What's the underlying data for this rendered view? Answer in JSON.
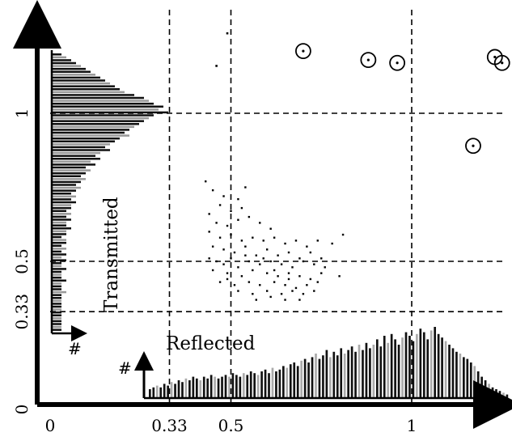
{
  "chart_data": {
    "type": "scatter",
    "xlabel": "Reflected",
    "ylabel": "Transmitted",
    "histogram_count_label": "#",
    "xlim": [
      0,
      1.25
    ],
    "ylim": [
      0,
      1.3
    ],
    "x_ticks": [
      {
        "value": 0,
        "label": "0"
      },
      {
        "value": 0.33,
        "label": "0.33"
      },
      {
        "value": 0.5,
        "label": "0.5"
      },
      {
        "value": 1,
        "label": "1"
      }
    ],
    "y_ticks": [
      {
        "value": 0,
        "label": "0"
      },
      {
        "value": 0.33,
        "label": "0.33"
      },
      {
        "value": 0.5,
        "label": "0.5"
      },
      {
        "value": 1,
        "label": "1"
      }
    ],
    "reference_lines_x": [
      0.33,
      0.5,
      1
    ],
    "reference_lines_y": [
      0.33,
      0.5,
      1
    ],
    "circled_points": [
      {
        "x": 0.7,
        "y": 1.21
      },
      {
        "x": 0.88,
        "y": 1.18
      },
      {
        "x": 0.96,
        "y": 1.17
      },
      {
        "x": 1.17,
        "y": 0.89
      },
      {
        "x": 1.23,
        "y": 1.19
      },
      {
        "x": 1.25,
        "y": 1.17
      }
    ],
    "outlier_points": [
      {
        "x": 0.46,
        "y": 1.16
      },
      {
        "x": 0.49,
        "y": 1.27
      }
    ],
    "cluster": {
      "description_points": [
        [
          0.43,
          0.77
        ],
        [
          0.45,
          0.74
        ],
        [
          0.48,
          0.72
        ],
        [
          0.52,
          0.71
        ],
        [
          0.54,
          0.75
        ],
        [
          0.47,
          0.69
        ],
        [
          0.5,
          0.67
        ],
        [
          0.53,
          0.68
        ],
        [
          0.44,
          0.66
        ],
        [
          0.46,
          0.63
        ],
        [
          0.49,
          0.62
        ],
        [
          0.52,
          0.64
        ],
        [
          0.55,
          0.65
        ],
        [
          0.58,
          0.63
        ],
        [
          0.61,
          0.61
        ],
        [
          0.44,
          0.6
        ],
        [
          0.47,
          0.58
        ],
        [
          0.5,
          0.59
        ],
        [
          0.53,
          0.57
        ],
        [
          0.56,
          0.58
        ],
        [
          0.59,
          0.57
        ],
        [
          0.62,
          0.58
        ],
        [
          0.65,
          0.56
        ],
        [
          0.68,
          0.57
        ],
        [
          0.71,
          0.55
        ],
        [
          0.74,
          0.57
        ],
        [
          0.78,
          0.56
        ],
        [
          0.81,
          0.59
        ],
        [
          0.45,
          0.55
        ],
        [
          0.48,
          0.54
        ],
        [
          0.51,
          0.53
        ],
        [
          0.54,
          0.55
        ],
        [
          0.57,
          0.52
        ],
        [
          0.6,
          0.54
        ],
        [
          0.63,
          0.52
        ],
        [
          0.66,
          0.53
        ],
        [
          0.69,
          0.51
        ],
        [
          0.72,
          0.53
        ],
        [
          0.75,
          0.51
        ],
        [
          0.44,
          0.51
        ],
        [
          0.46,
          0.5
        ],
        [
          0.48,
          0.49
        ],
        [
          0.5,
          0.51
        ],
        [
          0.52,
          0.48
        ],
        [
          0.55,
          0.5
        ],
        [
          0.58,
          0.49
        ],
        [
          0.61,
          0.5
        ],
        [
          0.64,
          0.49
        ],
        [
          0.67,
          0.48
        ],
        [
          0.7,
          0.5
        ],
        [
          0.73,
          0.49
        ],
        [
          0.76,
          0.48
        ],
        [
          0.45,
          0.47
        ],
        [
          0.49,
          0.46
        ],
        [
          0.53,
          0.45
        ],
        [
          0.56,
          0.47
        ],
        [
          0.6,
          0.46
        ],
        [
          0.63,
          0.45
        ],
        [
          0.66,
          0.46
        ],
        [
          0.69,
          0.45
        ],
        [
          0.72,
          0.44
        ],
        [
          0.75,
          0.46
        ],
        [
          0.8,
          0.45
        ],
        [
          0.47,
          0.43
        ],
        [
          0.51,
          0.42
        ],
        [
          0.55,
          0.43
        ],
        [
          0.58,
          0.42
        ],
        [
          0.62,
          0.43
        ],
        [
          0.65,
          0.42
        ],
        [
          0.68,
          0.41
        ],
        [
          0.71,
          0.42
        ],
        [
          0.74,
          0.43
        ],
        [
          0.52,
          0.4
        ],
        [
          0.56,
          0.39
        ],
        [
          0.6,
          0.4
        ],
        [
          0.64,
          0.39
        ],
        [
          0.67,
          0.4
        ],
        [
          0.7,
          0.39
        ],
        [
          0.73,
          0.4
        ],
        [
          0.57,
          0.37
        ],
        [
          0.61,
          0.38
        ],
        [
          0.65,
          0.37
        ],
        [
          0.69,
          0.37
        ],
        [
          0.49,
          0.44
        ],
        [
          0.54,
          0.52
        ],
        [
          0.59,
          0.51
        ],
        [
          0.62,
          0.47
        ],
        [
          0.66,
          0.44
        ]
      ]
    },
    "transmitted_histogram": [
      0.02,
      0.03,
      0.04,
      0.05,
      0.06,
      0.07,
      0.08,
      0.09,
      0.1,
      0.11,
      0.12,
      0.13,
      0.14,
      0.15,
      0.17,
      0.19,
      0.2,
      0.21,
      0.23,
      0.22,
      0.24,
      0.21,
      0.2,
      0.19,
      0.18,
      0.17,
      0.16,
      0.15,
      0.16,
      0.14,
      0.13,
      0.12,
      0.11,
      0.12,
      0.1,
      0.09,
      0.1,
      0.08,
      0.09,
      0.07,
      0.08,
      0.07,
      0.06,
      0.07,
      0.06,
      0.05,
      0.06,
      0.05,
      0.04,
      0.05,
      0.04,
      0.05,
      0.04,
      0.04,
      0.03,
      0.04,
      0.03,
      0.04,
      0.03,
      0.03,
      0.04,
      0.03,
      0.03,
      0.02,
      0.03,
      0.03,
      0.02,
      0.03,
      0.02,
      0.03,
      0.02,
      0.03,
      0.02,
      0.02,
      0.03,
      0.02,
      0.02,
      0.02,
      0.03,
      0.02,
      0.02,
      0.02,
      0.03,
      0.02,
      0.02,
      0.02,
      0.02,
      0.02,
      0.02,
      0.02,
      0.02,
      0.02,
      0.02,
      0.02,
      0.02,
      0.02
    ],
    "reflected_histogram": [
      0.05,
      0.06,
      0.07,
      0.06,
      0.08,
      0.07,
      0.09,
      0.08,
      0.1,
      0.09,
      0.11,
      0.1,
      0.12,
      0.11,
      0.1,
      0.12,
      0.11,
      0.13,
      0.12,
      0.11,
      0.12,
      0.13,
      0.12,
      0.14,
      0.13,
      0.12,
      0.14,
      0.13,
      0.15,
      0.14,
      0.13,
      0.15,
      0.16,
      0.14,
      0.17,
      0.15,
      0.16,
      0.18,
      0.17,
      0.19,
      0.2,
      0.18,
      0.21,
      0.22,
      0.2,
      0.23,
      0.25,
      0.22,
      0.24,
      0.27,
      0.23,
      0.26,
      0.24,
      0.28,
      0.25,
      0.27,
      0.29,
      0.26,
      0.3,
      0.27,
      0.31,
      0.28,
      0.3,
      0.33,
      0.29,
      0.35,
      0.31,
      0.36,
      0.33,
      0.3,
      0.34,
      0.37,
      0.35,
      0.32,
      0.36,
      0.39,
      0.37,
      0.33,
      0.38,
      0.4,
      0.36,
      0.34,
      0.32,
      0.3,
      0.28,
      0.26,
      0.25,
      0.23,
      0.22,
      0.2,
      0.18,
      0.15,
      0.12,
      0.1,
      0.08,
      0.06,
      0.05,
      0.04,
      0.03,
      0.02
    ]
  }
}
